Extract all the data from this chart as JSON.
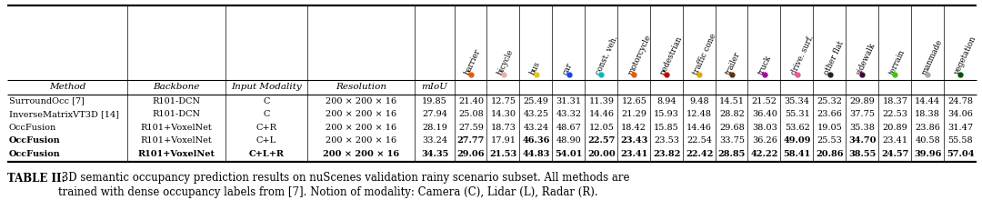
{
  "col_headers_fixed": [
    "Method",
    "Backbone",
    "Input Modality",
    "Resolution",
    "mIoU"
  ],
  "col_headers_rotated": [
    "barrier",
    "bicycle",
    "bus",
    "car",
    "const. veh.",
    "motorcycle",
    "pedestrian",
    "traffic cone",
    "trailer",
    "truck",
    "drive. surf.",
    "other flat",
    "sidewalk",
    "terrain",
    "manmade",
    "vegetation"
  ],
  "dot_colors": [
    "#e85c00",
    "#f0aaaa",
    "#e8c800",
    "#1144ee",
    "#00bbbb",
    "#e85c00",
    "#cc0000",
    "#ddaa00",
    "#5c3010",
    "#aa00aa",
    "#ee5599",
    "#222222",
    "#440044",
    "#33cc00",
    "#aaaaaa",
    "#005500"
  ],
  "rows": [
    [
      "SurroundOcc [7]",
      "R101-DCN",
      "C",
      "200 × 200 × 16",
      "19.85",
      "21.40",
      "12.75",
      "25.49",
      "31.31",
      "11.39",
      "12.65",
      "8.94",
      "9.48",
      "14.51",
      "21.52",
      "35.34",
      "25.32",
      "29.89",
      "18.37",
      "14.44",
      "24.78"
    ],
    [
      "InverseMatrixVT3D [14]",
      "R101-DCN",
      "C",
      "200 × 200 × 16",
      "27.94",
      "25.08",
      "14.30",
      "43.25",
      "43.32",
      "14.46",
      "21.29",
      "15.93",
      "12.48",
      "28.82",
      "36.40",
      "55.31",
      "23.66",
      "37.75",
      "22.53",
      "18.38",
      "34.06"
    ],
    [
      "OccFusion",
      "R101+VoxelNet",
      "C+R",
      "200 × 200 × 16",
      "28.19",
      "27.59",
      "18.73",
      "43.24",
      "48.67",
      "12.05",
      "18.42",
      "15.85",
      "14.46",
      "29.68",
      "38.03",
      "53.62",
      "19.05",
      "35.38",
      "20.89",
      "23.86",
      "31.47"
    ],
    [
      "OccFusion",
      "R101+VoxelNet",
      "C+L",
      "200 × 200 × 16",
      "33.24",
      "27.77",
      "17.91",
      "46.36",
      "48.90",
      "22.57",
      "23.43",
      "23.53",
      "22.54",
      "33.75",
      "36.26",
      "49.09",
      "25.53",
      "34.70",
      "23.41",
      "40.58",
      "55.58"
    ],
    [
      "OccFusion",
      "R101+VoxelNet",
      "C+L+R",
      "200 × 200 × 16",
      "34.35",
      "29.06",
      "21.53",
      "44.83",
      "54.01",
      "20.00",
      "23.41",
      "23.82",
      "22.42",
      "28.85",
      "42.22",
      "58.41",
      "20.86",
      "38.55",
      "24.57",
      "39.96",
      "57.04"
    ]
  ],
  "bold_cells": {
    "3": [
      5,
      7,
      9,
      10,
      15,
      17
    ],
    "4": [
      4,
      5,
      6,
      7,
      8,
      9,
      10,
      11,
      12,
      13,
      14,
      15,
      16,
      17,
      18,
      19,
      20
    ]
  },
  "bold_col_0_rows": [
    3,
    4
  ],
  "caption_bold": "TABLE II:",
  "caption_normal": " 3D semantic occupancy prediction results on nuScenes validation rainy scenario subset. All methods are\ntrained with dense occupancy labels from [7]. Notion of modality: Camera (C), Lidar (L), Radar (R).",
  "bg_color": "#ffffff"
}
